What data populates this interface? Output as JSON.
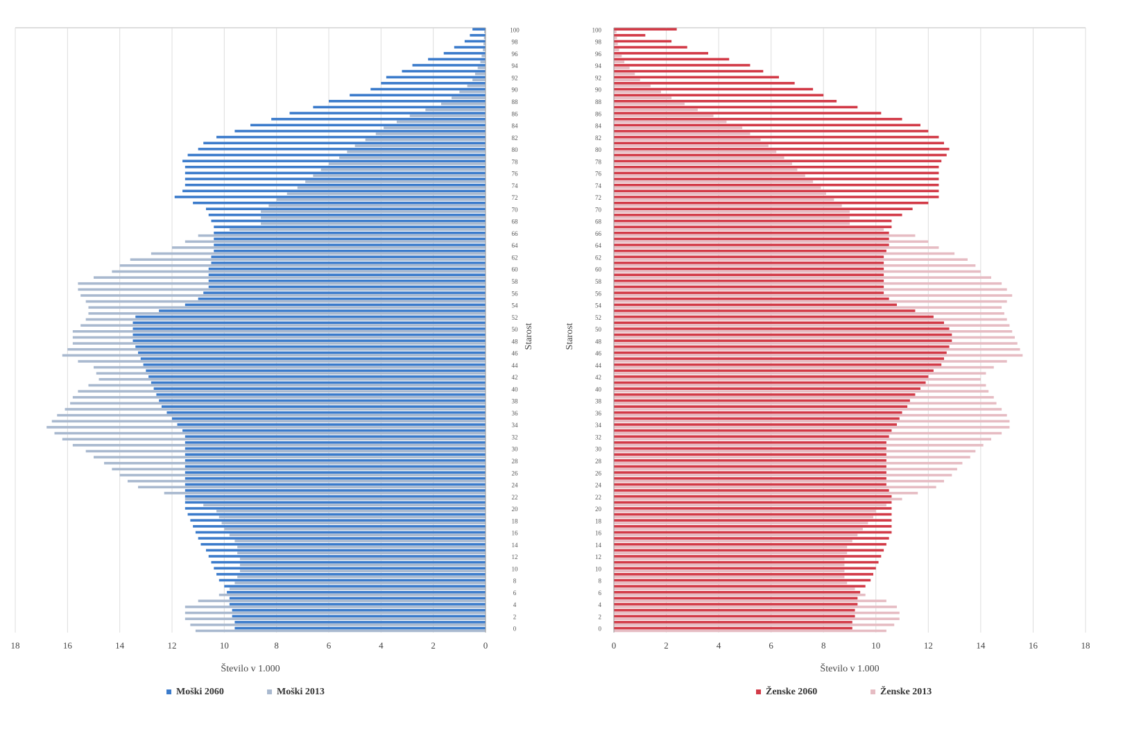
{
  "chart_data": [
    {
      "type": "bar",
      "orientation": "horizontal",
      "x_inverted": true,
      "xlabel": "Število v 1.000",
      "ylabel": "Starost",
      "categories": [
        0,
        null,
        2,
        null,
        4,
        null,
        6,
        null,
        8,
        null,
        10,
        null,
        12,
        null,
        14,
        null,
        16,
        null,
        18,
        null,
        20,
        null,
        22,
        null,
        24,
        null,
        26,
        null,
        28,
        null,
        30,
        null,
        32,
        null,
        34,
        null,
        36,
        null,
        38,
        null,
        40,
        null,
        42,
        null,
        44,
        null,
        46,
        null,
        48,
        null,
        50,
        null,
        52,
        null,
        54,
        null,
        56,
        null,
        58,
        null,
        60,
        null,
        62,
        null,
        64,
        null,
        66,
        null,
        68,
        null,
        70,
        null,
        72,
        null,
        74,
        null,
        76,
        null,
        78,
        null,
        80,
        null,
        82,
        null,
        84,
        null,
        86,
        null,
        88,
        null,
        90,
        null,
        92,
        null,
        94,
        null,
        96,
        null,
        98,
        null,
        100
      ],
      "series": [
        {
          "name": "Moški 2060",
          "color": "#3b7bcb",
          "values": [
            9.6,
            9.6,
            9.7,
            9.7,
            9.8,
            9.8,
            9.9,
            10.0,
            10.2,
            10.3,
            10.4,
            10.5,
            10.6,
            10.7,
            10.9,
            11.0,
            11.1,
            11.2,
            11.3,
            11.4,
            11.5,
            11.5,
            11.5,
            11.5,
            11.5,
            11.5,
            11.5,
            11.5,
            11.5,
            11.5,
            11.5,
            11.5,
            11.5,
            11.6,
            11.8,
            12.0,
            12.2,
            12.4,
            12.5,
            12.6,
            12.7,
            12.8,
            12.9,
            13.0,
            13.1,
            13.2,
            13.3,
            13.4,
            13.5,
            13.5,
            13.5,
            13.5,
            13.4,
            12.5,
            11.5,
            11.0,
            10.8,
            10.6,
            10.6,
            10.6,
            10.6,
            10.5,
            10.5,
            10.4,
            10.4,
            10.4,
            10.4,
            10.4,
            10.5,
            10.6,
            10.7,
            11.2,
            11.9,
            11.6,
            11.5,
            11.5,
            11.5,
            11.5,
            11.6,
            11.4,
            11.0,
            10.8,
            10.3,
            9.6,
            9.0,
            8.2,
            7.5,
            6.6,
            6.0,
            5.2,
            4.4,
            4.0,
            3.8,
            3.2,
            2.8,
            2.2,
            1.6,
            1.2,
            0.8,
            0.6,
            0.5
          ]
        },
        {
          "name": "Moški 2013",
          "color": "#a9b9cf",
          "values": [
            11.1,
            11.3,
            11.5,
            11.5,
            11.5,
            11.0,
            10.2,
            9.8,
            9.6,
            9.5,
            9.4,
            9.4,
            9.4,
            9.5,
            9.5,
            9.6,
            9.8,
            10.0,
            10.1,
            10.2,
            10.3,
            10.8,
            11.5,
            12.3,
            13.3,
            13.7,
            14.0,
            14.3,
            14.6,
            15.0,
            15.3,
            15.8,
            16.2,
            16.5,
            16.8,
            16.6,
            16.4,
            16.1,
            15.9,
            15.8,
            15.6,
            15.2,
            14.8,
            14.9,
            15.0,
            15.6,
            16.2,
            16.0,
            15.8,
            15.8,
            15.8,
            15.5,
            15.3,
            15.2,
            15.2,
            15.3,
            15.5,
            15.6,
            15.6,
            15.0,
            14.3,
            14.0,
            13.6,
            12.8,
            12.0,
            11.5,
            11.0,
            9.8,
            8.6,
            8.6,
            8.6,
            8.3,
            8.0,
            7.6,
            7.2,
            6.9,
            6.6,
            6.3,
            6.0,
            5.6,
            5.3,
            5.0,
            4.6,
            4.2,
            3.9,
            3.4,
            2.9,
            2.3,
            1.7,
            1.3,
            1.0,
            0.7,
            0.5,
            0.4,
            0.3,
            0.2,
            0.15,
            0.1,
            0.08,
            0.06,
            0.05
          ]
        }
      ],
      "xlim": [
        0,
        18
      ],
      "xticks": [
        0,
        2,
        4,
        6,
        8,
        10,
        12,
        14,
        16,
        18
      ],
      "grid": true,
      "legend": "bottom"
    },
    {
      "type": "bar",
      "orientation": "horizontal",
      "x_inverted": false,
      "xlabel": "Število v 1.000",
      "ylabel": "Starost",
      "categories": [
        0,
        null,
        2,
        null,
        4,
        null,
        6,
        null,
        8,
        null,
        10,
        null,
        12,
        null,
        14,
        null,
        16,
        null,
        18,
        null,
        20,
        null,
        22,
        null,
        24,
        null,
        26,
        null,
        28,
        null,
        30,
        null,
        32,
        null,
        34,
        null,
        36,
        null,
        38,
        null,
        40,
        null,
        42,
        null,
        44,
        null,
        46,
        null,
        48,
        null,
        50,
        null,
        52,
        null,
        54,
        null,
        56,
        null,
        58,
        null,
        60,
        null,
        62,
        null,
        64,
        null,
        66,
        null,
        68,
        null,
        70,
        null,
        72,
        null,
        74,
        null,
        76,
        null,
        78,
        null,
        80,
        null,
        82,
        null,
        84,
        null,
        86,
        null,
        88,
        null,
        90,
        null,
        92,
        null,
        94,
        null,
        96,
        null,
        98,
        null,
        100
      ],
      "series": [
        {
          "name": "Ženske 2060",
          "color": "#d23a47",
          "values": [
            9.1,
            9.1,
            9.2,
            9.2,
            9.3,
            9.3,
            9.4,
            9.6,
            9.8,
            9.9,
            10.0,
            10.1,
            10.2,
            10.3,
            10.4,
            10.5,
            10.6,
            10.6,
            10.6,
            10.6,
            10.6,
            10.6,
            10.6,
            10.5,
            10.4,
            10.4,
            10.4,
            10.4,
            10.4,
            10.4,
            10.4,
            10.4,
            10.5,
            10.6,
            10.8,
            10.9,
            11.0,
            11.2,
            11.3,
            11.5,
            11.7,
            11.9,
            12.0,
            12.2,
            12.5,
            12.6,
            12.7,
            12.8,
            12.9,
            12.9,
            12.8,
            12.6,
            12.2,
            11.5,
            10.8,
            10.5,
            10.3,
            10.3,
            10.3,
            10.3,
            10.3,
            10.3,
            10.3,
            10.4,
            10.5,
            10.5,
            10.5,
            10.6,
            10.6,
            11.0,
            11.4,
            12.0,
            12.4,
            12.4,
            12.4,
            12.4,
            12.4,
            12.4,
            12.5,
            12.7,
            12.8,
            12.6,
            12.4,
            12.0,
            11.7,
            11.0,
            10.2,
            9.3,
            8.5,
            8.0,
            7.6,
            6.9,
            6.3,
            5.7,
            5.2,
            4.4,
            3.6,
            2.8,
            2.2,
            1.2,
            2.4
          ]
        },
        {
          "name": "Ženske 2013",
          "color": "#e6bcc3",
          "values": [
            10.4,
            10.7,
            10.9,
            10.9,
            10.8,
            10.4,
            9.6,
            9.2,
            8.9,
            8.8,
            8.8,
            8.8,
            8.8,
            8.9,
            8.9,
            9.1,
            9.3,
            9.5,
            9.7,
            9.9,
            10.0,
            10.4,
            11.0,
            11.6,
            12.3,
            12.6,
            12.9,
            13.1,
            13.3,
            13.6,
            13.8,
            14.1,
            14.4,
            14.8,
            15.1,
            15.1,
            15.0,
            14.8,
            14.6,
            14.5,
            14.3,
            14.2,
            14.0,
            14.2,
            14.5,
            15.0,
            15.6,
            15.5,
            15.4,
            15.3,
            15.2,
            15.1,
            15.0,
            14.9,
            14.8,
            15.0,
            15.2,
            15.0,
            14.8,
            14.4,
            14.0,
            13.8,
            13.5,
            13.0,
            12.4,
            12.0,
            11.5,
            10.3,
            9.0,
            9.0,
            9.0,
            8.7,
            8.4,
            8.1,
            7.9,
            7.6,
            7.3,
            7.0,
            6.8,
            6.5,
            6.2,
            5.9,
            5.6,
            5.2,
            4.9,
            4.3,
            3.8,
            3.2,
            2.7,
            2.2,
            1.8,
            1.4,
            1.0,
            0.8,
            0.6,
            0.4,
            0.3,
            0.2,
            0.15,
            0.12,
            0.1
          ]
        }
      ],
      "xlim": [
        0,
        18
      ],
      "xticks": [
        0,
        2,
        4,
        6,
        8,
        10,
        12,
        14,
        16,
        18
      ],
      "grid": true,
      "legend": "bottom"
    }
  ]
}
